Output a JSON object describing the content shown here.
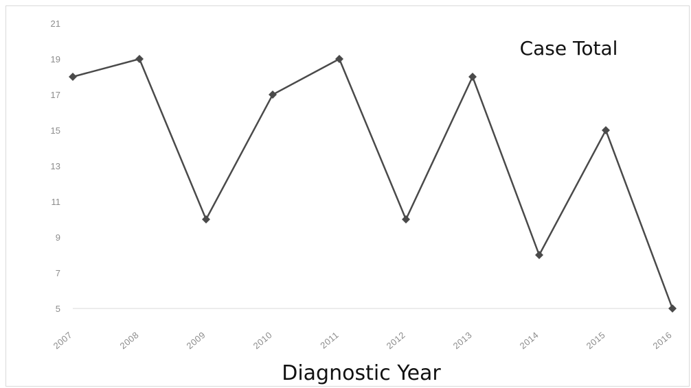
{
  "chart_data": {
    "type": "line",
    "xlabel": "Diagnostic Year",
    "ylabel": "",
    "categories": [
      "2007",
      "2008",
      "2009",
      "2010",
      "2011",
      "2012",
      "2013",
      "2014",
      "2015",
      "2016"
    ],
    "series": [
      {
        "name": "Case Total",
        "values": [
          18,
          19,
          10,
          17,
          19,
          10,
          18,
          8,
          15,
          5
        ],
        "color": "#4a4a4a"
      }
    ],
    "ylim": [
      5,
      21
    ],
    "yticks": [
      5,
      7,
      9,
      11,
      13,
      15,
      17,
      19,
      21
    ],
    "grid": false,
    "legend": "top-right"
  }
}
